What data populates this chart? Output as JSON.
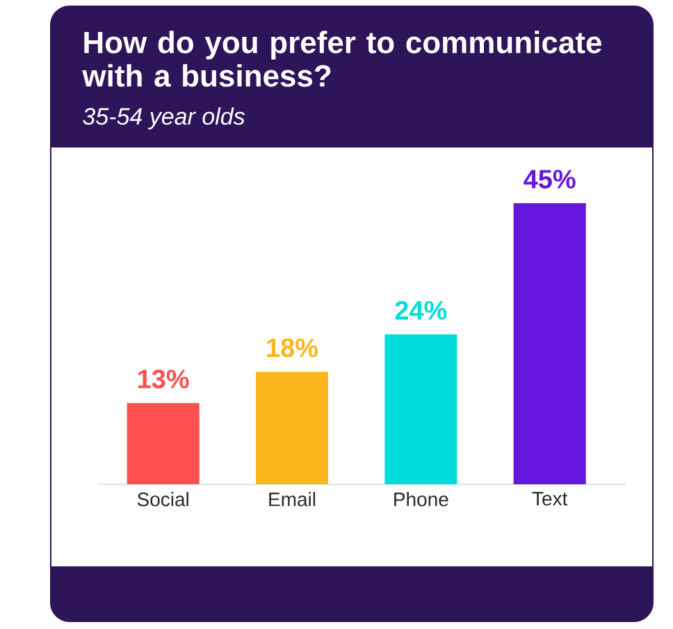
{
  "chart_data": {
    "type": "bar",
    "title": "How do you prefer to communicate with a business?",
    "subtitle": "35-54 year olds",
    "categories": [
      "Social",
      "Email",
      "Phone",
      "Text"
    ],
    "values": [
      13,
      18,
      24,
      45
    ],
    "colors": [
      "#fd5050",
      "#fbb61d",
      "#00dcdc",
      "#6416dc"
    ],
    "value_labels": [
      "13%",
      "18%",
      "24%",
      "45%"
    ],
    "tick_labels": "x"
  }
}
